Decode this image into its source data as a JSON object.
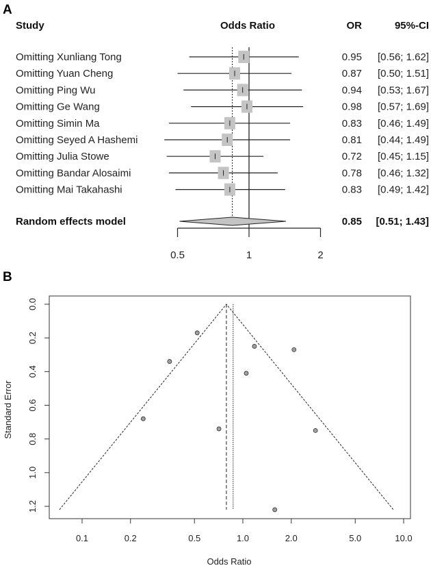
{
  "chart_data": [
    {
      "type": "forest",
      "panel_label": "A",
      "headers": {
        "study": "Study",
        "effect": "Odds Ratio",
        "or": "OR",
        "ci": "95%-CI"
      },
      "x_scale": "log",
      "x_ticks": [
        0.5,
        1,
        2
      ],
      "x_tick_labels": [
        "0.5",
        "1",
        "2"
      ],
      "studies": [
        {
          "label": "Omitting Xunliang Tong",
          "or": 0.95,
          "lower": 0.56,
          "upper": 1.62,
          "or_text": "0.95",
          "ci_text": "[0.56; 1.62]"
        },
        {
          "label": "Omitting Yuan Cheng",
          "or": 0.87,
          "lower": 0.5,
          "upper": 1.51,
          "or_text": "0.87",
          "ci_text": "[0.50; 1.51]"
        },
        {
          "label": "Omitting Ping Wu",
          "or": 0.94,
          "lower": 0.53,
          "upper": 1.67,
          "or_text": "0.94",
          "ci_text": "[0.53; 1.67]"
        },
        {
          "label": "Omitting Ge Wang",
          "or": 0.98,
          "lower": 0.57,
          "upper": 1.69,
          "or_text": "0.98",
          "ci_text": "[0.57; 1.69]"
        },
        {
          "label": "Omitting Simin Ma",
          "or": 0.83,
          "lower": 0.46,
          "upper": 1.49,
          "or_text": "0.83",
          "ci_text": "[0.46; 1.49]"
        },
        {
          "label": "Omitting Seyed A Hashemi",
          "or": 0.81,
          "lower": 0.44,
          "upper": 1.49,
          "or_text": "0.81",
          "ci_text": "[0.44; 1.49]"
        },
        {
          "label": "Omitting Julia Stowe",
          "or": 0.72,
          "lower": 0.45,
          "upper": 1.15,
          "or_text": "0.72",
          "ci_text": "[0.45; 1.15]"
        },
        {
          "label": "Omitting Bandar Alosaimi",
          "or": 0.78,
          "lower": 0.46,
          "upper": 1.32,
          "or_text": "0.78",
          "ci_text": "[0.46; 1.32]"
        },
        {
          "label": "Omitting Mai Takahashi",
          "or": 0.83,
          "lower": 0.49,
          "upper": 1.42,
          "or_text": "0.83",
          "ci_text": "[0.49; 1.42]"
        }
      ],
      "pooled": {
        "label": "Random effects model",
        "or": 0.85,
        "lower": 0.51,
        "upper": 1.43,
        "or_text": "0.85",
        "ci_text": "[0.51; 1.43]"
      },
      "reference_line": 1,
      "colors": {
        "square": "#c4c4c4",
        "diamond": "#c4c4c4",
        "line": "#222222"
      }
    },
    {
      "type": "scatter",
      "subtype": "funnel",
      "panel_label": "B",
      "xlabel": "Odds Ratio",
      "ylabel": "Standard Error",
      "x_scale": "log",
      "xlim": [
        0.07,
        10.5
      ],
      "ylim": [
        1.28,
        -0.05
      ],
      "y_reversed": true,
      "x_ticks": [
        0.1,
        0.2,
        0.5,
        1.0,
        2.0,
        5.0,
        10.0
      ],
      "x_tick_labels": [
        "0.1",
        "0.2",
        "0.5",
        "1.0",
        "2.0",
        "5.0",
        "10.0"
      ],
      "y_ticks": [
        0.0,
        0.2,
        0.4,
        0.6,
        0.8,
        1.0,
        1.2
      ],
      "y_tick_labels": [
        "0.0",
        "0.2",
        "0.4",
        "0.6",
        "0.8",
        "1.0",
        "1.2"
      ],
      "points": [
        {
          "x": 0.52,
          "y": 0.17
        },
        {
          "x": 0.35,
          "y": 0.34
        },
        {
          "x": 0.24,
          "y": 0.68
        },
        {
          "x": 0.71,
          "y": 0.74
        },
        {
          "x": 1.05,
          "y": 0.41
        },
        {
          "x": 1.18,
          "y": 0.25
        },
        {
          "x": 2.08,
          "y": 0.27
        },
        {
          "x": 2.83,
          "y": 0.75
        },
        {
          "x": 1.58,
          "y": 1.22
        }
      ],
      "funnel_center": 0.79,
      "funnel_max_se": 1.22,
      "dashed_line": 0.79,
      "dotted_line": 0.87,
      "colors": {
        "point": "#a0a0a0"
      }
    }
  ]
}
